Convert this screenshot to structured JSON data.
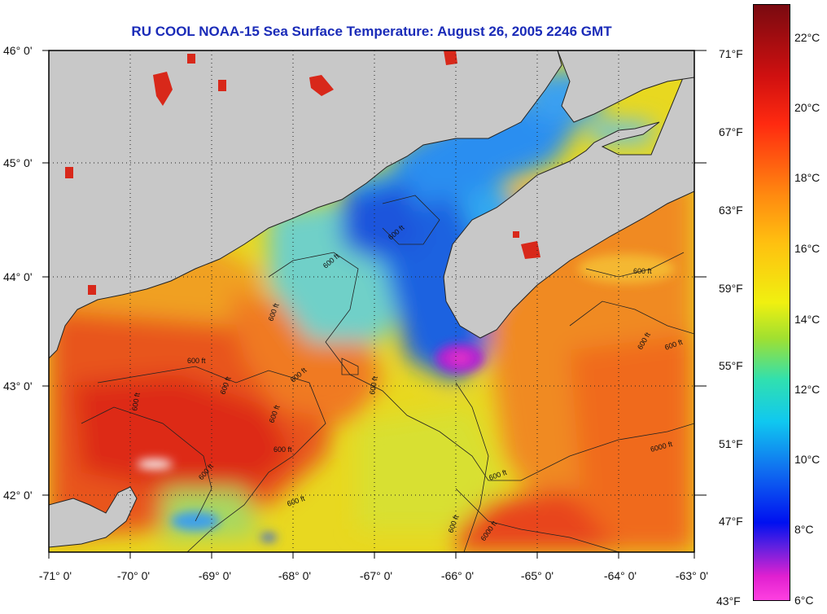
{
  "title": "RU COOL  NOAA-15  Sea Surface Temperature:  August 26, 2005 2246 GMT",
  "lat_labels": [
    "46° 0'",
    "45° 0'",
    "44° 0'",
    "43° 0'",
    "42° 0'"
  ],
  "lon_labels": [
    "-71° 0'",
    "-70° 0'",
    "-69° 0'",
    "-68° 0'",
    "-67° 0'",
    "-66° 0'",
    "-65° 0'",
    "-64° 0'",
    "-63° 0'"
  ],
  "depth_labels": [
    "600 ft",
    "6000 ft"
  ],
  "colorbar": {
    "celsius": [
      "22°C",
      "20°C",
      "18°C",
      "16°C",
      "14°C",
      "12°C",
      "10°C",
      "8°C",
      "6°C"
    ],
    "fahrenheit": [
      "71°F",
      "67°F",
      "63°F",
      "59°F",
      "55°F",
      "51°F",
      "47°F",
      "43°F"
    ]
  },
  "colors": {
    "land": "#c8c8c8",
    "title": "#1a2bb8",
    "warm": "#e0321a",
    "cold": "#1a3ce6",
    "coldest": "#e020c8"
  }
}
